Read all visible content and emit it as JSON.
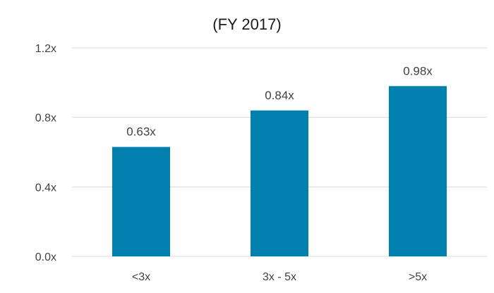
{
  "chart_data": {
    "type": "bar",
    "title": "(FY 2017)",
    "categories": [
      "<3x",
      "3x - 5x",
      ">5x"
    ],
    "values": [
      0.63,
      0.84,
      0.98
    ],
    "value_labels": [
      "0.63x",
      "0.84x",
      "0.98x"
    ],
    "xlabel": "",
    "ylabel": "",
    "ylim": [
      0,
      1.2
    ],
    "yticks": [
      0.0,
      0.4,
      0.8,
      1.2
    ],
    "ytick_labels": [
      "0.0x",
      "0.4x",
      "0.8x",
      "1.2x"
    ],
    "grid": true,
    "legend": "none",
    "bar_color": "#0080AE",
    "grid_color": "#D9D9D9",
    "text_color": "#404040"
  }
}
